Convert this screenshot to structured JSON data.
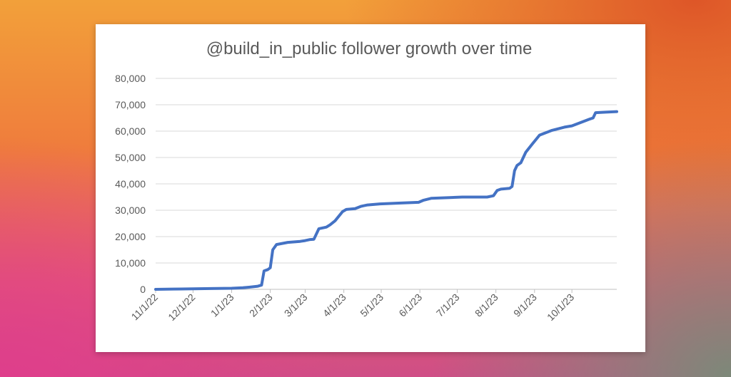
{
  "chart_data": {
    "type": "line",
    "title": "@build_in_public follower growth over time",
    "xlabel": "",
    "ylabel": "",
    "x_tick_labels": [
      "11/1/22",
      "12/1/22",
      "1/1/23",
      "2/1/23",
      "3/1/23",
      "4/1/23",
      "5/1/23",
      "6/1/23",
      "7/1/23",
      "8/1/23",
      "9/1/23",
      "10/1/23"
    ],
    "y_tick_labels": [
      "0",
      "10,000",
      "20,000",
      "30,000",
      "40,000",
      "50,000",
      "60,000",
      "70,000",
      "80,000"
    ],
    "ylim": [
      0,
      80000
    ],
    "xlim": [
      "2022-11-01",
      "2023-11-06"
    ],
    "grid": "horizontal",
    "legend": "none",
    "line_color": "#4472c4",
    "series": [
      {
        "x": [
          "2022-11-01",
          "2022-11-15",
          "2022-12-01",
          "2022-12-15",
          "2023-01-01",
          "2023-01-10",
          "2023-01-15",
          "2023-01-22",
          "2023-01-25",
          "2023-01-27",
          "2023-01-30",
          "2023-02-01",
          "2023-02-03",
          "2023-02-06",
          "2023-02-15",
          "2023-02-25",
          "2023-03-01",
          "2023-03-05",
          "2023-03-08",
          "2023-03-12",
          "2023-03-18",
          "2023-03-21",
          "2023-03-25",
          "2023-03-31",
          "2023-04-03",
          "2023-04-10",
          "2023-04-15",
          "2023-04-20",
          "2023-04-30",
          "2023-05-15",
          "2023-05-31",
          "2023-06-04",
          "2023-06-10",
          "2023-06-25",
          "2023-07-05",
          "2023-07-25",
          "2023-07-30",
          "2023-08-02",
          "2023-08-05",
          "2023-08-12",
          "2023-08-14",
          "2023-08-16",
          "2023-08-18",
          "2023-08-21",
          "2023-08-25",
          "2023-08-30",
          "2023-09-05",
          "2023-09-15",
          "2023-09-25",
          "2023-10-01",
          "2023-10-12",
          "2023-10-15",
          "2023-10-18",
          "2023-10-20",
          "2023-10-28",
          "2023-11-06"
        ],
        "y": [
          0,
          100,
          200,
          300,
          400,
          600,
          800,
          1200,
          1600,
          7000,
          7500,
          8200,
          15000,
          17000,
          17800,
          18200,
          18500,
          18900,
          19000,
          23000,
          23600,
          24500,
          26000,
          29500,
          30300,
          30600,
          31500,
          32000,
          32400,
          32700,
          33000,
          33800,
          34500,
          34800,
          35000,
          35000,
          35500,
          37500,
          38000,
          38300,
          39000,
          45000,
          47000,
          48000,
          52000,
          55000,
          58500,
          60300,
          61500,
          62000,
          64000,
          64500,
          65000,
          67000,
          67200,
          67400
        ]
      }
    ]
  }
}
